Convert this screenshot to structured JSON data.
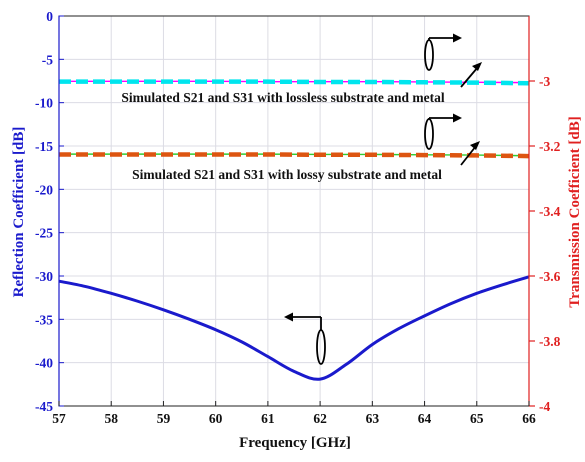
{
  "chart_data": {
    "type": "line",
    "xlabel": "Frequency [GHz]",
    "ylabel_left": "Reflection Coefficient [dB]",
    "ylabel_right": "Transmission Coefficient [dB]",
    "xlim": [
      57,
      66
    ],
    "ylim_left": [
      -45,
      0
    ],
    "ylim_right": [
      -4,
      -2.8
    ],
    "xticks": [
      "57",
      "58",
      "59",
      "60",
      "61",
      "62",
      "63",
      "64",
      "65",
      "66"
    ],
    "yticks_left": [
      "0",
      "-5",
      "-10",
      "-15",
      "-20",
      "-25",
      "-30",
      "-35",
      "-40",
      "-45"
    ],
    "yticks_right": [
      "-3",
      "-3.2",
      "-3.4",
      "-3.6",
      "-3.8",
      "-4"
    ],
    "grid": true,
    "colors": {
      "left_axis": "#1a1acc",
      "right_axis": "#e02020",
      "s11": "#1a1acc",
      "s21_lossless": "#ff00ff",
      "s31_lossless": "#00e5ee",
      "s21_lossy": "#33cc33",
      "s31_lossy": "#dd5511"
    },
    "series": [
      {
        "axis": "left",
        "style": "solid",
        "x": [
          57,
          57.5,
          58,
          58.5,
          59,
          59.5,
          60,
          60.5,
          61,
          61.5,
          62,
          62.5,
          63,
          63.5,
          64,
          64.5,
          65,
          65.5,
          66
        ],
        "y": [
          -30.6,
          -31.2,
          -32.0,
          -32.9,
          -33.9,
          -35.0,
          -36.2,
          -37.6,
          -39.3,
          -41.0,
          -41.9,
          -40.2,
          -37.9,
          -36.1,
          -34.6,
          -33.2,
          -32.0,
          -31.0,
          -30.1
        ]
      },
      {
        "axis": "right",
        "style": "solid",
        "x": [
          57,
          58,
          59,
          60,
          61,
          62,
          63,
          64,
          65,
          66
        ],
        "y": [
          -3.001,
          -3.001,
          -3.001,
          -3.001,
          -3.002,
          -3.002,
          -3.002,
          -3.003,
          -3.004,
          -3.005
        ]
      },
      {
        "axis": "right",
        "style": "dashed",
        "x": [
          57,
          58,
          59,
          60,
          61,
          62,
          63,
          64,
          65,
          66
        ],
        "y": [
          -3.002,
          -3.002,
          -3.002,
          -3.002,
          -3.002,
          -3.003,
          -3.003,
          -3.004,
          -3.005,
          -3.007
        ]
      },
      {
        "axis": "right",
        "style": "solid",
        "x": [
          57,
          58,
          59,
          60,
          61,
          62,
          63,
          64,
          65,
          66
        ],
        "y": [
          -3.225,
          -3.225,
          -3.225,
          -3.225,
          -3.225,
          -3.226,
          -3.226,
          -3.227,
          -3.228,
          -3.23
        ]
      },
      {
        "axis": "right",
        "style": "dashed",
        "x": [
          57,
          58,
          59,
          60,
          61,
          62,
          63,
          64,
          65,
          66
        ],
        "y": [
          -3.226,
          -3.226,
          -3.226,
          -3.226,
          -3.226,
          -3.227,
          -3.227,
          -3.228,
          -3.229,
          -3.231
        ]
      }
    ],
    "annotations": [
      "Simulated S21 and S31 with lossless substrate and metal",
      "Simulated S21 and S31 with lossy substrate and metal"
    ]
  }
}
